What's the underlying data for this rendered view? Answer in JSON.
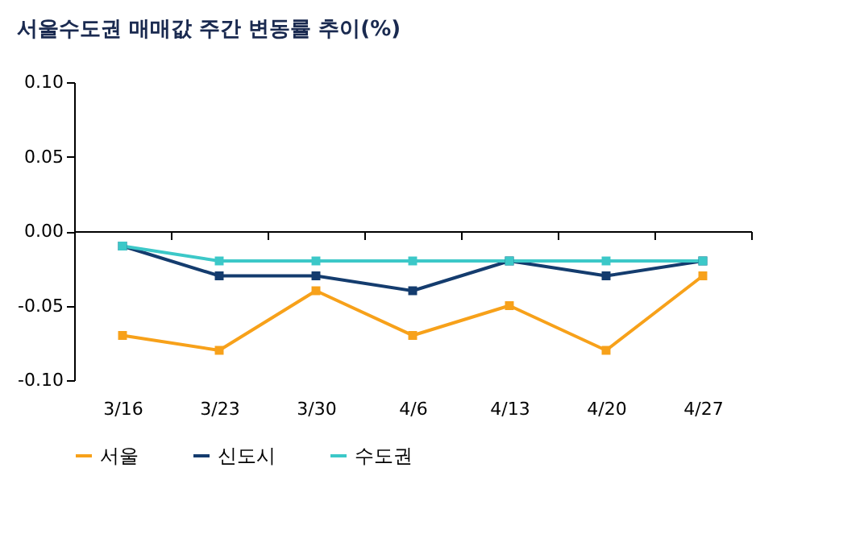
{
  "chart_data": {
    "type": "line",
    "title": "서울수도권 매매값 주간 변동률 추이(%)",
    "categories": [
      "3/16",
      "3/23",
      "3/30",
      "4/6",
      "4/13",
      "4/20",
      "4/27"
    ],
    "series": [
      {
        "name": "서울",
        "color": "#f7a11a",
        "values": [
          -0.07,
          -0.08,
          -0.04,
          -0.07,
          -0.05,
          -0.08,
          -0.03
        ]
      },
      {
        "name": "신도시",
        "color": "#143c6e",
        "values": [
          -0.01,
          -0.03,
          -0.03,
          -0.04,
          -0.02,
          -0.03,
          -0.02
        ]
      },
      {
        "name": "수도권",
        "color": "#3cc8c8",
        "values": [
          -0.01,
          -0.02,
          -0.02,
          -0.02,
          -0.02,
          -0.02,
          -0.02
        ]
      }
    ],
    "ylim": [
      -0.1,
      0.1
    ],
    "yticks": [
      {
        "value": -0.1,
        "label": "-0.10"
      },
      {
        "value": -0.05,
        "label": "-0.05"
      },
      {
        "value": 0,
        "label": "0.00"
      },
      {
        "value": 0.05,
        "label": "0.05"
      },
      {
        "value": 0.1,
        "label": "0.10"
      }
    ],
    "legend": "bottom left",
    "marker": "square",
    "line_style": "solid"
  }
}
